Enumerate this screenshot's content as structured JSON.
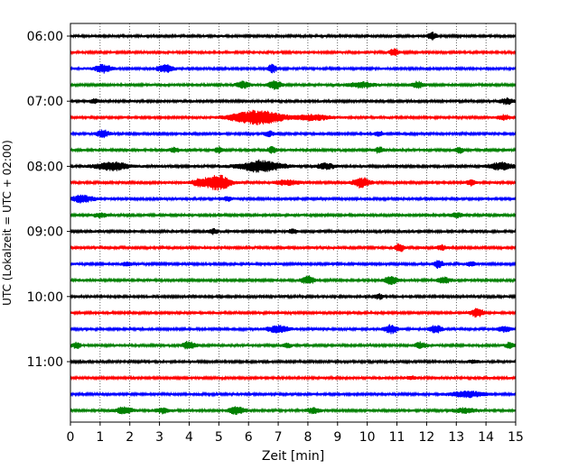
{
  "chart_data": {
    "type": "line",
    "title": "",
    "xlabel": "Zeit  [min]",
    "ylabel": "UTC (Lokalzeit = UTC + 02:00)",
    "xlim": [
      0,
      15
    ],
    "x_ticks": [
      0,
      1,
      2,
      3,
      4,
      5,
      6,
      7,
      8,
      9,
      10,
      11,
      12,
      13,
      14,
      15
    ],
    "y_ticks": [
      "06:00",
      "07:00",
      "08:00",
      "09:00",
      "10:00",
      "11:00"
    ],
    "grid": "vertical dotted",
    "trace_interval_min": 15,
    "colors": [
      "#000000",
      "#ff0000",
      "#0000ff",
      "#008000"
    ],
    "traces": [
      {
        "start": "06:00",
        "color": "#000000",
        "events": [
          {
            "t": 12.2,
            "amp": 0.5,
            "dur": 0.2
          }
        ]
      },
      {
        "start": "06:15",
        "color": "#ff0000",
        "events": [
          {
            "t": 10.9,
            "amp": 0.5,
            "dur": 0.2
          }
        ]
      },
      {
        "start": "06:30",
        "color": "#0000ff",
        "events": [
          {
            "t": 1.1,
            "amp": 0.55,
            "dur": 0.4
          },
          {
            "t": 3.2,
            "amp": 0.5,
            "dur": 0.4
          },
          {
            "t": 6.8,
            "amp": 0.6,
            "dur": 0.2
          }
        ]
      },
      {
        "start": "06:45",
        "color": "#008000",
        "events": [
          {
            "t": 5.8,
            "amp": 0.5,
            "dur": 0.3
          },
          {
            "t": 6.9,
            "amp": 0.6,
            "dur": 0.3
          },
          {
            "t": 9.8,
            "amp": 0.4,
            "dur": 0.6
          },
          {
            "t": 11.7,
            "amp": 0.45,
            "dur": 0.3
          }
        ]
      },
      {
        "start": "07:00",
        "color": "#000000",
        "events": [
          {
            "t": 0.8,
            "amp": 0.3,
            "dur": 0.2
          },
          {
            "t": 14.7,
            "amp": 0.4,
            "dur": 0.3
          }
        ]
      },
      {
        "start": "07:15",
        "color": "#ff0000",
        "events": [
          {
            "t": 6.3,
            "amp": 1.0,
            "dur": 1.2
          },
          {
            "t": 8.2,
            "amp": 0.4,
            "dur": 0.8
          },
          {
            "t": 14.6,
            "amp": 0.3,
            "dur": 0.3
          }
        ]
      },
      {
        "start": "07:30",
        "color": "#0000ff",
        "events": [
          {
            "t": 1.1,
            "amp": 0.5,
            "dur": 0.3
          },
          {
            "t": 6.7,
            "amp": 0.4,
            "dur": 0.2
          },
          {
            "t": 10.4,
            "amp": 0.3,
            "dur": 0.2
          }
        ]
      },
      {
        "start": "07:45",
        "color": "#008000",
        "events": [
          {
            "t": 3.5,
            "amp": 0.4,
            "dur": 0.2
          },
          {
            "t": 5.0,
            "amp": 0.4,
            "dur": 0.2
          },
          {
            "t": 6.8,
            "amp": 0.45,
            "dur": 0.2
          },
          {
            "t": 10.4,
            "amp": 0.4,
            "dur": 0.2
          },
          {
            "t": 13.1,
            "amp": 0.4,
            "dur": 0.2
          }
        ]
      },
      {
        "start": "08:00",
        "color": "#000000",
        "events": [
          {
            "t": 1.4,
            "amp": 0.6,
            "dur": 0.8
          },
          {
            "t": 6.4,
            "amp": 0.8,
            "dur": 1.0
          },
          {
            "t": 8.6,
            "amp": 0.4,
            "dur": 0.4
          },
          {
            "t": 14.5,
            "amp": 0.5,
            "dur": 0.6
          }
        ]
      },
      {
        "start": "08:15",
        "color": "#ff0000",
        "events": [
          {
            "t": 4.4,
            "amp": 0.6,
            "dur": 0.4
          },
          {
            "t": 5.0,
            "amp": 1.1,
            "dur": 0.5
          },
          {
            "t": 7.3,
            "amp": 0.35,
            "dur": 0.6
          },
          {
            "t": 9.8,
            "amp": 0.7,
            "dur": 0.4
          },
          {
            "t": 13.5,
            "amp": 0.4,
            "dur": 0.2
          }
        ]
      },
      {
        "start": "08:30",
        "color": "#0000ff",
        "events": [
          {
            "t": 0.4,
            "amp": 0.5,
            "dur": 0.5
          },
          {
            "t": 5.3,
            "amp": 0.3,
            "dur": 0.2
          }
        ]
      },
      {
        "start": "08:45",
        "color": "#008000",
        "events": [
          {
            "t": 1.0,
            "amp": 0.3,
            "dur": 0.3
          },
          {
            "t": 13.0,
            "amp": 0.3,
            "dur": 0.3
          }
        ]
      },
      {
        "start": "09:00",
        "color": "#000000",
        "events": [
          {
            "t": 4.8,
            "amp": 0.35,
            "dur": 0.2
          },
          {
            "t": 7.5,
            "amp": 0.3,
            "dur": 0.2
          }
        ]
      },
      {
        "start": "09:15",
        "color": "#ff0000",
        "events": [
          {
            "t": 11.1,
            "amp": 0.6,
            "dur": 0.2
          },
          {
            "t": 12.5,
            "amp": 0.35,
            "dur": 0.2
          }
        ]
      },
      {
        "start": "09:30",
        "color": "#0000ff",
        "events": [
          {
            "t": 1.9,
            "amp": 0.3,
            "dur": 0.2
          },
          {
            "t": 12.4,
            "amp": 0.6,
            "dur": 0.2
          },
          {
            "t": 13.5,
            "amp": 0.3,
            "dur": 0.2
          }
        ]
      },
      {
        "start": "09:45",
        "color": "#008000",
        "events": [
          {
            "t": 8.0,
            "amp": 0.55,
            "dur": 0.3
          },
          {
            "t": 10.8,
            "amp": 0.6,
            "dur": 0.3
          },
          {
            "t": 12.6,
            "amp": 0.4,
            "dur": 0.3
          }
        ]
      },
      {
        "start": "10:00",
        "color": "#000000",
        "events": [
          {
            "t": 10.4,
            "amp": 0.35,
            "dur": 0.2
          }
        ]
      },
      {
        "start": "10:15",
        "color": "#ff0000",
        "events": [
          {
            "t": 13.7,
            "amp": 0.6,
            "dur": 0.3
          }
        ]
      },
      {
        "start": "10:30",
        "color": "#0000ff",
        "events": [
          {
            "t": 7.0,
            "amp": 0.5,
            "dur": 0.5
          },
          {
            "t": 10.8,
            "amp": 0.6,
            "dur": 0.3
          },
          {
            "t": 12.3,
            "amp": 0.5,
            "dur": 0.3
          },
          {
            "t": 14.6,
            "amp": 0.4,
            "dur": 0.3
          }
        ]
      },
      {
        "start": "10:45",
        "color": "#008000",
        "events": [
          {
            "t": 0.2,
            "amp": 0.4,
            "dur": 0.2
          },
          {
            "t": 4.0,
            "amp": 0.55,
            "dur": 0.3
          },
          {
            "t": 7.3,
            "amp": 0.3,
            "dur": 0.2
          },
          {
            "t": 11.8,
            "amp": 0.4,
            "dur": 0.3
          },
          {
            "t": 14.8,
            "amp": 0.4,
            "dur": 0.2
          }
        ]
      },
      {
        "start": "11:00",
        "color": "#000000",
        "events": [
          {
            "t": 13.6,
            "amp": 0.2,
            "dur": 0.3
          }
        ]
      },
      {
        "start": "11:15",
        "color": "#ff0000",
        "events": [
          {
            "t": 11.5,
            "amp": 0.2,
            "dur": 0.3
          }
        ]
      },
      {
        "start": "11:30",
        "color": "#0000ff",
        "events": [
          {
            "t": 13.4,
            "amp": 0.4,
            "dur": 0.8
          }
        ]
      },
      {
        "start": "11:45",
        "color": "#008000",
        "events": [
          {
            "t": 1.8,
            "amp": 0.45,
            "dur": 0.4
          },
          {
            "t": 3.1,
            "amp": 0.4,
            "dur": 0.3
          },
          {
            "t": 5.6,
            "amp": 0.5,
            "dur": 0.4
          },
          {
            "t": 8.2,
            "amp": 0.4,
            "dur": 0.3
          },
          {
            "t": 13.3,
            "amp": 0.35,
            "dur": 0.5
          }
        ]
      }
    ]
  }
}
